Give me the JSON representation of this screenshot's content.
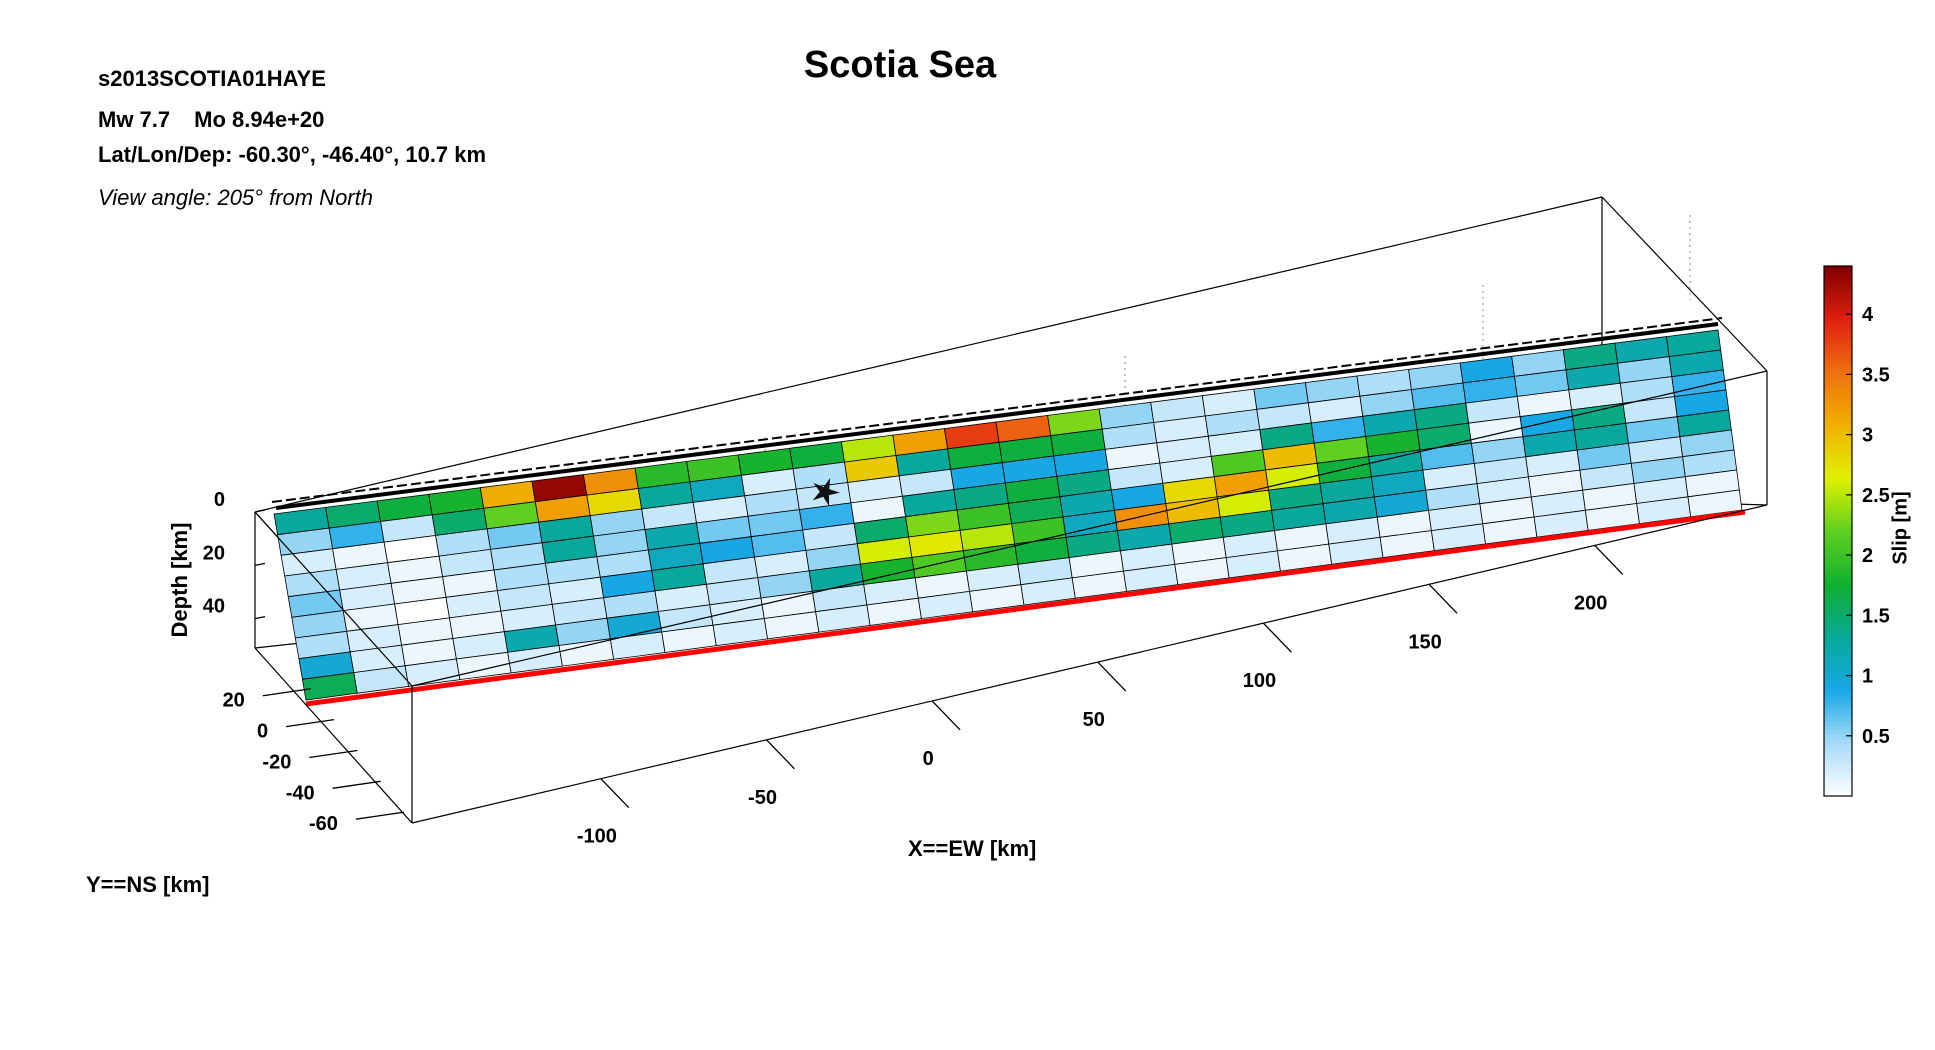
{
  "header": {
    "title": "Scotia Sea",
    "event_id": "s2013SCOTIA01HAYE",
    "mw_label": "Mw 7.7",
    "mo_label": "Mo 8.94e+20",
    "latlon_label": "Lat/Lon/Dep: -60.30°, -46.40°, 10.7 km",
    "view_angle_label": "View angle: 205° from North"
  },
  "chart_data": {
    "type": "heatmap",
    "title": "Scotia Sea",
    "xlabel": "X==EW [km]",
    "ylabel": "Y==NS [km]",
    "zlabel": "Depth [km]",
    "colorbar_label": "Slip [m]",
    "x_ticks": [
      -100,
      -50,
      0,
      50,
      100,
      150,
      200
    ],
    "y_ticks": [
      20,
      0,
      -20,
      -40,
      -60
    ],
    "z_ticks": [
      0,
      20,
      40
    ],
    "colorbar_ticks": [
      "0.5",
      "1",
      "1.5",
      "2",
      "2.5",
      "3",
      "3.5",
      "4"
    ],
    "colorbar_range": [
      0,
      4.4
    ],
    "colormap": [
      "#ffffff",
      "#a8dcf8",
      "#18a8e8",
      "#08a898",
      "#10b030",
      "#60d020",
      "#e0f000",
      "#f0b000",
      "#f07010",
      "#e02010",
      "#800000"
    ],
    "trench_color": "#ff0000",
    "grid_columns": 28,
    "grid_rows": 9,
    "slip": [
      [
        1.3,
        1.5,
        1.7,
        1.8,
        3.1,
        4.3,
        3.3,
        1.9,
        2.0,
        1.8,
        1.7,
        2.5,
        3.2,
        3.8,
        3.6,
        2.3,
        0.5,
        0.3,
        0.2,
        0.6,
        0.5,
        0.4,
        0.5,
        0.9,
        0.5,
        1.4,
        1.2,
        1.3
      ],
      [
        0.5,
        0.8,
        0.3,
        1.5,
        2.2,
        3.2,
        2.8,
        1.3,
        1.1,
        0.2,
        0.4,
        2.9,
        1.3,
        1.7,
        1.7,
        1.7,
        0.4,
        0.2,
        0.4,
        0.3,
        0.2,
        0.5,
        0.7,
        0.8,
        0.6,
        1.2,
        0.5,
        1.2
      ],
      [
        0.2,
        0.1,
        0.0,
        0.4,
        0.6,
        1.3,
        0.5,
        0.3,
        0.2,
        0.4,
        0.3,
        0.2,
        0.3,
        0.9,
        0.9,
        0.9,
        0.1,
        0.2,
        0.2,
        1.4,
        0.8,
        1.2,
        1.4,
        0.3,
        0.1,
        0.2,
        0.4,
        0.8
      ],
      [
        0.4,
        0.2,
        0.1,
        0.3,
        0.4,
        1.3,
        0.5,
        1.2,
        0.6,
        0.6,
        0.8,
        0.1,
        1.3,
        1.4,
        1.7,
        1.4,
        0.3,
        0.2,
        2.1,
        3.0,
        2.2,
        1.8,
        1.5,
        0.1,
        0.9,
        1.4,
        0.3,
        0.9
      ],
      [
        0.6,
        0.2,
        0.1,
        0.1,
        0.4,
        0.4,
        0.4,
        1.1,
        0.9,
        0.7,
        0.3,
        1.5,
        2.3,
        2.0,
        1.6,
        1.2,
        0.9,
        2.8,
        3.2,
        2.6,
        1.7,
        1.3,
        0.7,
        0.5,
        1.2,
        1.3,
        0.6,
        1.3
      ],
      [
        0.5,
        0.1,
        0.0,
        0.2,
        0.3,
        0.2,
        0.9,
        1.3,
        0.3,
        0.2,
        0.5,
        2.6,
        2.7,
        2.5,
        2.0,
        1.1,
        3.3,
        3.0,
        2.6,
        1.4,
        1.3,
        1.1,
        0.2,
        0.3,
        0.2,
        0.6,
        0.3,
        0.5
      ],
      [
        0.4,
        0.2,
        0.1,
        0.1,
        0.2,
        0.3,
        0.4,
        0.2,
        0.3,
        0.5,
        1.3,
        1.8,
        2.1,
        1.9,
        1.7,
        1.4,
        1.2,
        1.5,
        1.4,
        1.3,
        1.2,
        1.0,
        0.4,
        0.2,
        0.1,
        0.3,
        0.5,
        0.4
      ],
      [
        1.0,
        0.2,
        0.1,
        0.2,
        1.2,
        0.5,
        1.0,
        0.3,
        0.2,
        0.1,
        0.3,
        0.2,
        0.1,
        0.2,
        0.3,
        0.1,
        0.2,
        0.1,
        0.2,
        0.1,
        0.2,
        0.1,
        0.2,
        0.1,
        0.2,
        0.1,
        0.2,
        0.1
      ],
      [
        1.6,
        0.3,
        0.2,
        0.1,
        0.2,
        0.1,
        0.2,
        0.1,
        0.2,
        0.1,
        0.2,
        0.1,
        0.2,
        0.1,
        0.2,
        0.1,
        0.2,
        0.1,
        0.2,
        0.1,
        0.2,
        0.1,
        0.2,
        0.1,
        0.2,
        0.1,
        0.2,
        0.1
      ]
    ]
  }
}
